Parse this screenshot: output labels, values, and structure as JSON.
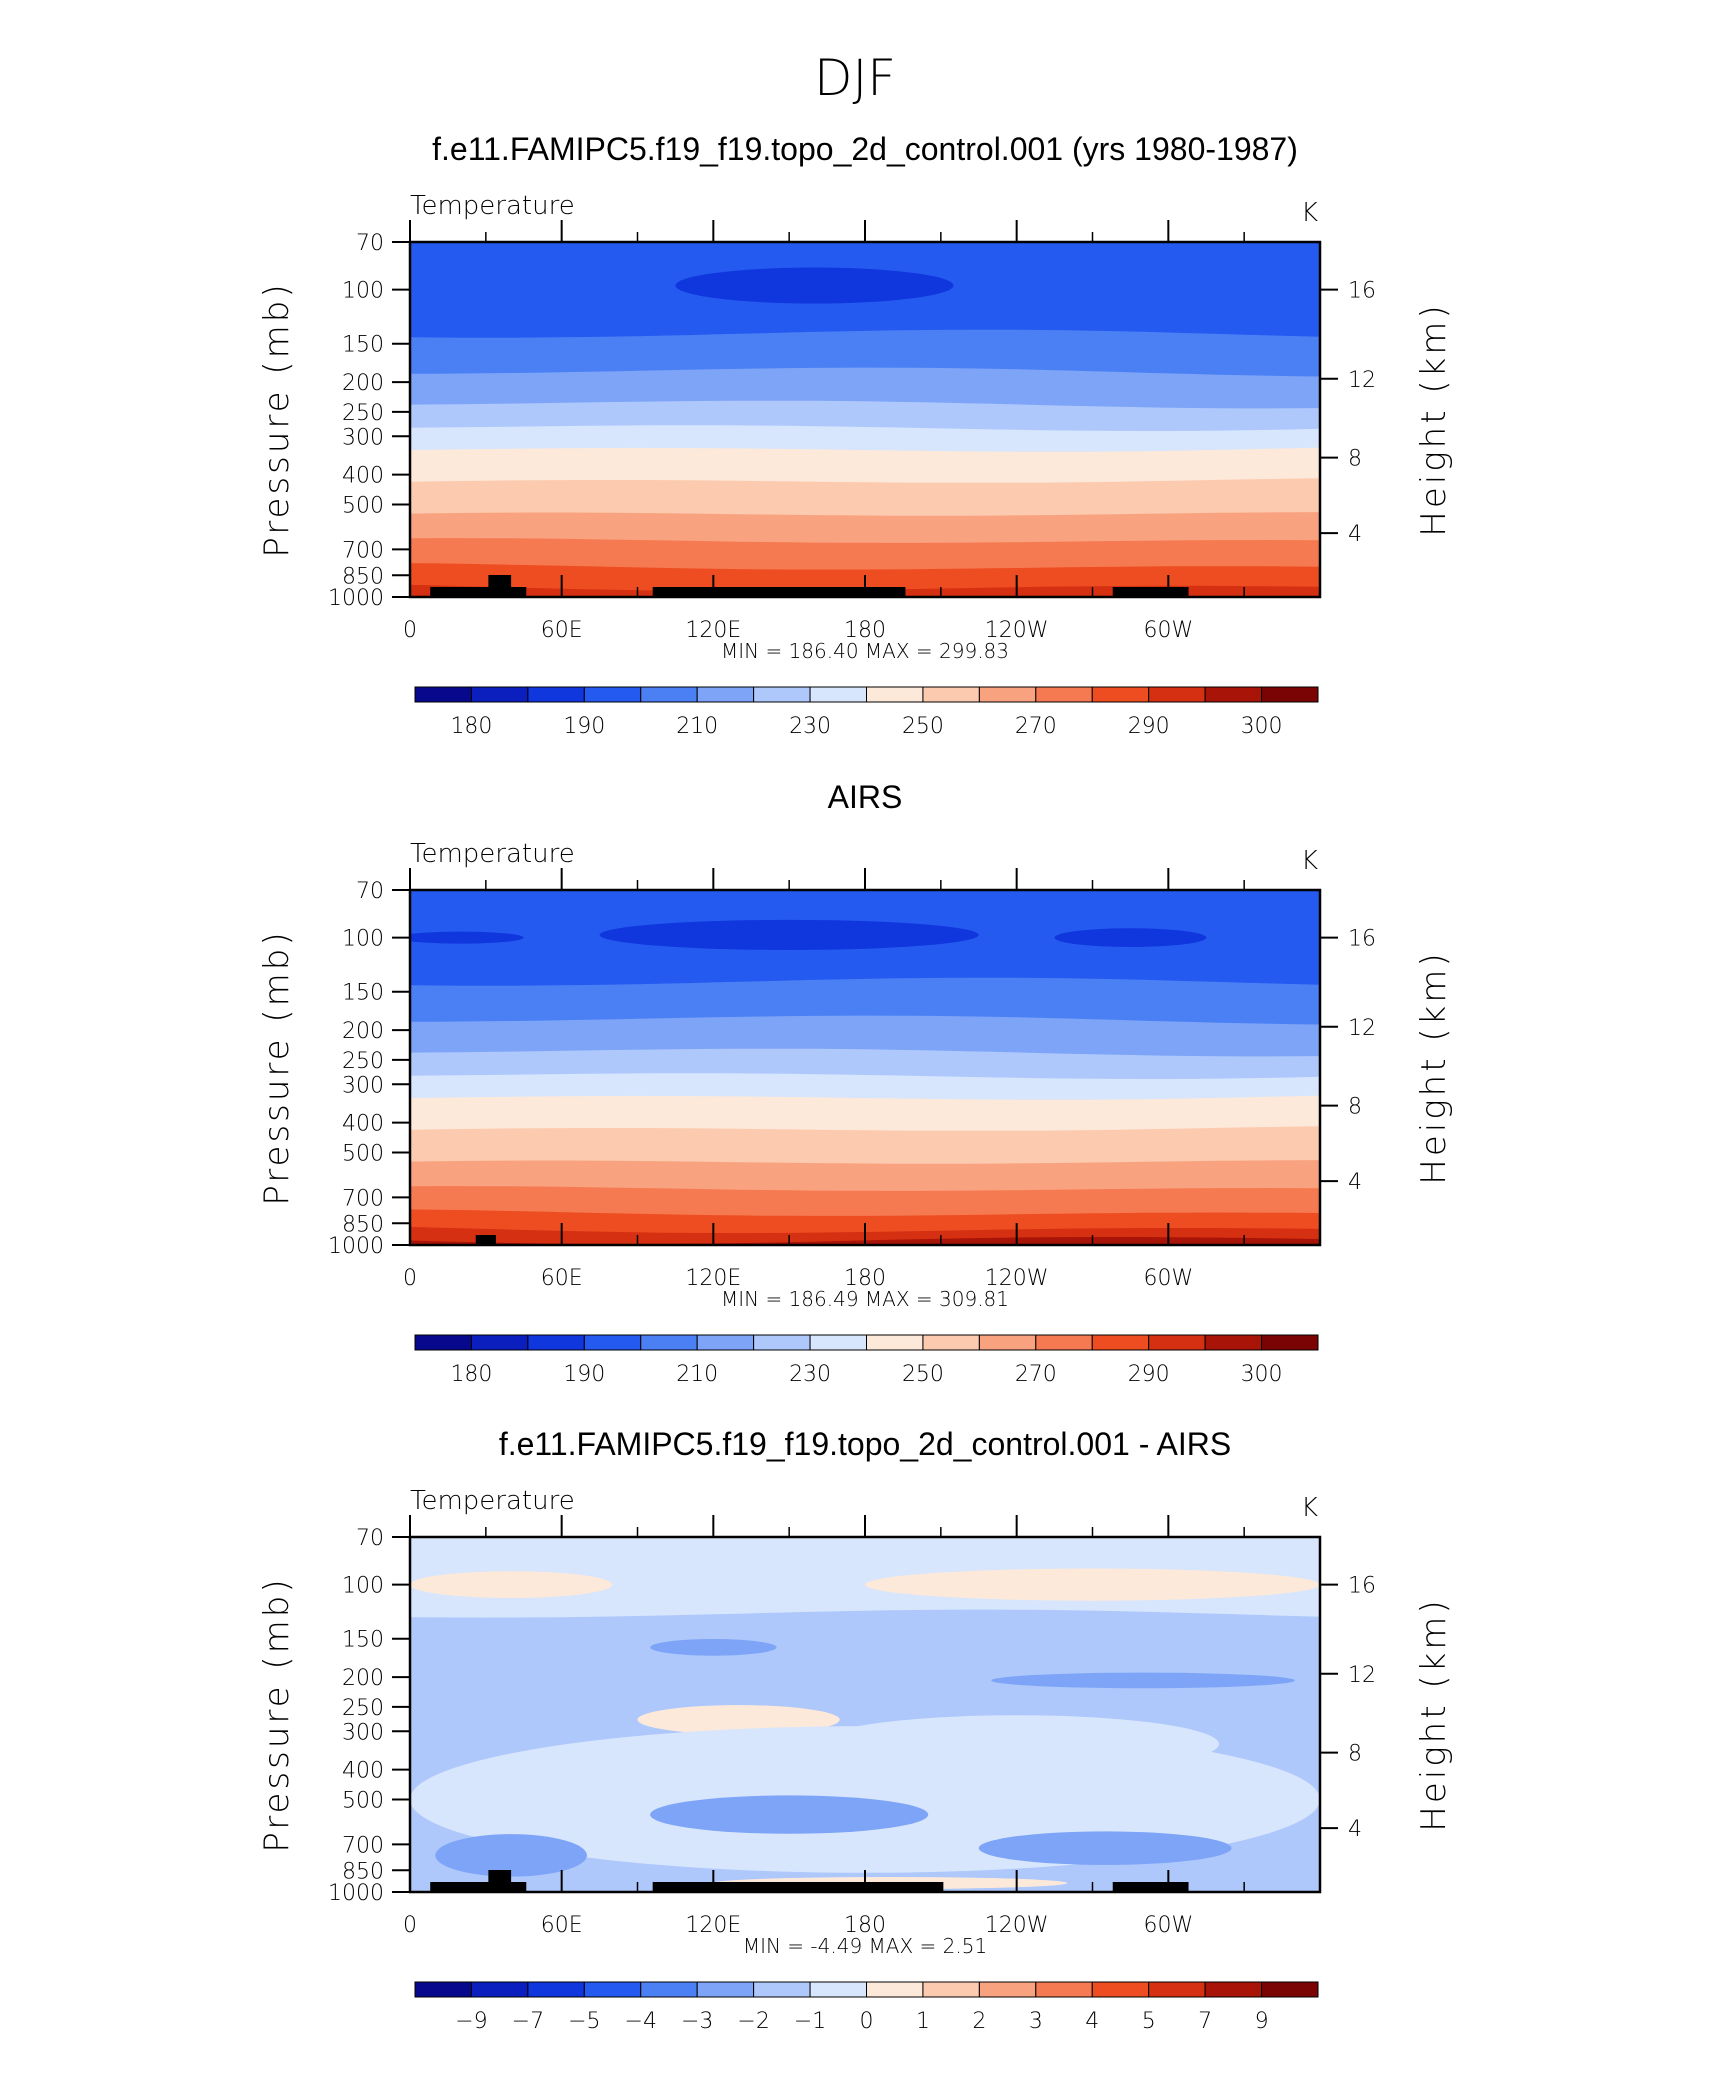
{
  "figure_title": "DJF",
  "colors": {
    "temp": [
      "#08088c",
      "#0b1fbf",
      "#1036de",
      "#245aef",
      "#4b80f5",
      "#7da4f7",
      "#aec8fb",
      "#d7e6fc",
      "#fde9d9",
      "#fccaaf",
      "#f9a280",
      "#f57a51",
      "#ee4d21",
      "#d63013",
      "#a81408",
      "#7a0404"
    ],
    "diff": [
      "#08088c",
      "#0b1fbf",
      "#1036de",
      "#245aef",
      "#4b80f5",
      "#7da4f7",
      "#aec8fb",
      "#d7e6fc",
      "#fde9d9",
      "#fccaaf",
      "#f9a280",
      "#f57a51",
      "#ee4d21",
      "#d63013",
      "#a81408",
      "#7a0404"
    ]
  },
  "chart_data": [
    {
      "type": "heatmap",
      "title": "f.e11.FAMIPC5.f19_f19.topo_2d_control.001 (yrs 1980-1987)",
      "left_label": "Temperature",
      "units": "K",
      "ylabel": "Pressure (mb)",
      "y2label": "Height (km)",
      "x_ticks": [
        "0",
        "60E",
        "120E",
        "180",
        "120W",
        "60W"
      ],
      "y_ticks": [
        "70",
        "100",
        "150",
        "200",
        "250",
        "300",
        "400",
        "500",
        "700",
        "850",
        "1000"
      ],
      "y2_ticks": [
        "16",
        "12",
        "8",
        "4"
      ],
      "min_max_text": "MIN =   186.40   MAX =   299.83",
      "colorbar_labels": [
        "180",
        "190",
        "210",
        "230",
        "250",
        "270",
        "290",
        "300"
      ],
      "palette": "temp",
      "bands": [
        {
          "p": 75,
          "c": 3
        },
        {
          "p": 140,
          "c": 4
        },
        {
          "p": 185,
          "c": 5
        },
        {
          "p": 235,
          "c": 6
        },
        {
          "p": 280,
          "c": 7
        },
        {
          "p": 330,
          "c": 8
        },
        {
          "p": 420,
          "c": 9
        },
        {
          "p": 540,
          "c": 10
        },
        {
          "p": 660,
          "c": 11
        },
        {
          "p": 800,
          "c": 12
        },
        {
          "p": 930,
          "c": 13
        }
      ],
      "blobs": [
        {
          "cx": 160,
          "p": 97,
          "rx": 55,
          "rp": 13,
          "c": 2
        }
      ],
      "topo": [
        [
          8,
          46
        ],
        [
          96,
          196
        ],
        [
          278,
          308
        ]
      ],
      "topo_peak": [
        [
          31,
          40
        ]
      ]
    },
    {
      "type": "heatmap",
      "title": "AIRS",
      "left_label": "Temperature",
      "units": "K",
      "ylabel": "Pressure (mb)",
      "y2label": "Height (km)",
      "x_ticks": [
        "0",
        "60E",
        "120E",
        "180",
        "120W",
        "60W"
      ],
      "y_ticks": [
        "70",
        "100",
        "150",
        "200",
        "250",
        "300",
        "400",
        "500",
        "700",
        "850",
        "1000"
      ],
      "y2_ticks": [
        "16",
        "12",
        "8",
        "4"
      ],
      "min_max_text": "MIN =   186.49   MAX =   309.81",
      "colorbar_labels": [
        "180",
        "190",
        "210",
        "230",
        "250",
        "270",
        "290",
        "300"
      ],
      "palette": "temp",
      "bands": [
        {
          "p": 75,
          "c": 3
        },
        {
          "p": 140,
          "c": 4
        },
        {
          "p": 185,
          "c": 5
        },
        {
          "p": 235,
          "c": 6
        },
        {
          "p": 280,
          "c": 7
        },
        {
          "p": 330,
          "c": 8
        },
        {
          "p": 420,
          "c": 9
        },
        {
          "p": 540,
          "c": 10
        },
        {
          "p": 660,
          "c": 11
        },
        {
          "p": 790,
          "c": 12
        },
        {
          "p": 890,
          "c": 13
        },
        {
          "p": 960,
          "c": 14
        }
      ],
      "blobs": [
        {
          "cx": 150,
          "p": 98,
          "rx": 75,
          "rp": 11,
          "c": 2
        },
        {
          "cx": 285,
          "p": 100,
          "rx": 30,
          "rp": 7,
          "c": 2
        },
        {
          "cx": 20,
          "p": 100,
          "rx": 25,
          "rp": 4,
          "c": 2
        }
      ],
      "topo": [
        [
          26,
          34
        ]
      ],
      "topo_peak": []
    },
    {
      "type": "heatmap",
      "title": "f.e11.FAMIPC5.f19_f19.topo_2d_control.001 - AIRS",
      "left_label": "Temperature",
      "units": "K",
      "ylabel": "Pressure (mb)",
      "y2label": "Height (km)",
      "x_ticks": [
        "0",
        "60E",
        "120E",
        "180",
        "120W",
        "60W"
      ],
      "y_ticks": [
        "70",
        "100",
        "150",
        "200",
        "250",
        "300",
        "400",
        "500",
        "700",
        "850",
        "1000"
      ],
      "y2_ticks": [
        "16",
        "12",
        "8",
        "4"
      ],
      "min_max_text": "MIN =    -4.49   MAX =     2.51",
      "colorbar_labels": [
        "−9",
        "−7",
        "−5",
        "−4",
        "−3",
        "−2",
        "−1",
        "0",
        "1",
        "2",
        "3",
        "4",
        "5",
        "7",
        "9"
      ],
      "palette": "diff",
      "bands": [
        {
          "p": 70,
          "c": 7
        },
        {
          "p": 125,
          "c": 6
        }
      ],
      "blobs": [
        {
          "cx": 40,
          "p": 100,
          "rx": 40,
          "rp": 10,
          "c": 8
        },
        {
          "cx": 270,
          "p": 100,
          "rx": 90,
          "rp": 12,
          "c": 8
        },
        {
          "cx": 130,
          "p": 275,
          "rx": 40,
          "rp": 30,
          "c": 8
        },
        {
          "cx": 180,
          "p": 500,
          "rx": 180,
          "rp": 250,
          "c": 7
        },
        {
          "cx": 240,
          "p": 330,
          "rx": 80,
          "rp": 70,
          "c": 7
        },
        {
          "cx": 150,
          "p": 560,
          "rx": 55,
          "rp": 80,
          "c": 5
        },
        {
          "cx": 275,
          "p": 720,
          "rx": 50,
          "rp": 90,
          "c": 5
        },
        {
          "cx": 40,
          "p": 760,
          "rx": 30,
          "rp": 120,
          "c": 5
        },
        {
          "cx": 120,
          "p": 160,
          "rx": 25,
          "rp": 10,
          "c": 5
        },
        {
          "cx": 290,
          "p": 205,
          "rx": 60,
          "rp": 12,
          "c": 5
        },
        {
          "cx": 190,
          "p": 935,
          "rx": 70,
          "rp": 30,
          "c": 8
        }
      ],
      "topo": [
        [
          8,
          46
        ],
        [
          96,
          211
        ],
        [
          278,
          308
        ]
      ],
      "topo_peak": [
        [
          31,
          40
        ]
      ]
    }
  ]
}
